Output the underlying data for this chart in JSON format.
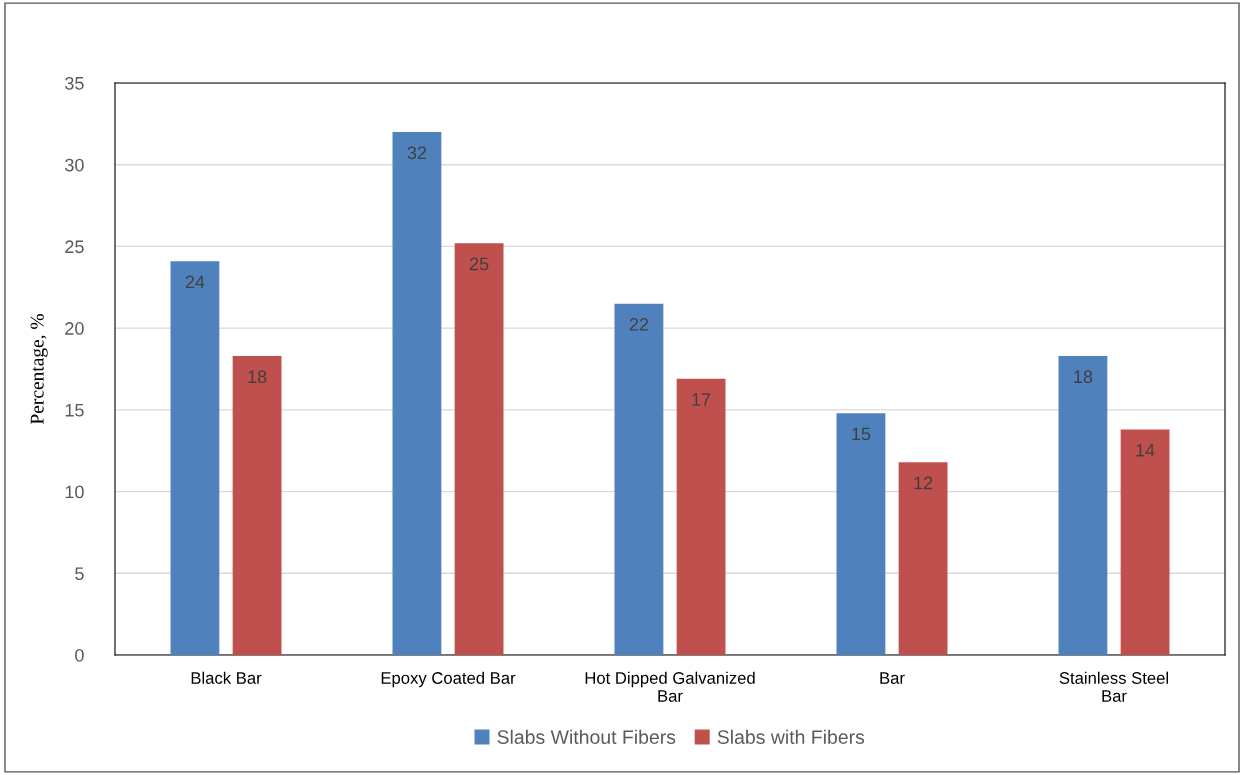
{
  "chart_data": {
    "type": "bar",
    "ylabel": "Percentage, %",
    "categories": [
      "Black Bar",
      "Epoxy Coated Bar",
      "Hot Dipped Galvanized\nBar",
      "Bar",
      "Stainless Steel\nBar"
    ],
    "series": [
      {
        "name": "Slabs Without Fibers",
        "color": "#4f81bd",
        "values": [
          24.1,
          32.0,
          21.5,
          14.8,
          18.3
        ],
        "value_labels": [
          "24",
          "32",
          "22",
          "15",
          "18"
        ]
      },
      {
        "name": "Slabs with Fibers",
        "color": "#c0504d",
        "values": [
          18.3,
          25.2,
          16.9,
          11.8,
          13.8
        ],
        "value_labels": [
          "18",
          "25",
          "17",
          "12",
          "14"
        ]
      }
    ],
    "ylim": [
      0,
      35
    ],
    "yticks": [
      0,
      5,
      10,
      15,
      20,
      25,
      30,
      35
    ],
    "grid": "y",
    "legend": "bottom"
  }
}
